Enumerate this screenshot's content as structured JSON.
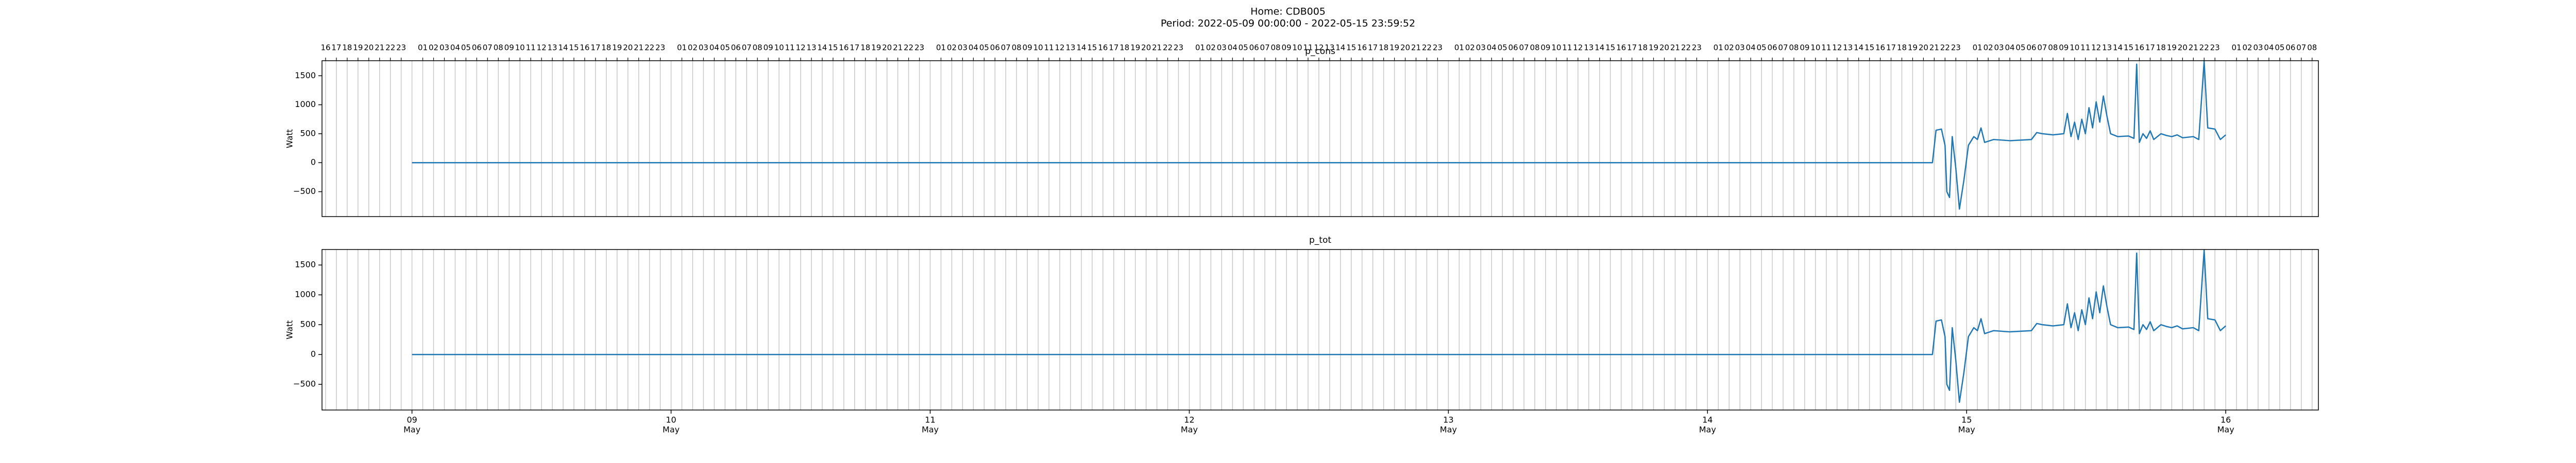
{
  "title": "Home: CDB005",
  "subtitle": "Period: 2022-05-09 00:00:00 - 2022-05-15 23:59:52",
  "chart_data": [
    {
      "type": "line",
      "title": "p_cons",
      "ylabel": "Watt",
      "color": "#1f77b4",
      "grid": true,
      "xlim": [
        "2022-05-08 15:40",
        "2022-05-16 08:35"
      ],
      "ylim": [
        -930,
        1760
      ],
      "yticks": [
        {
          "value": -500,
          "label": "−500"
        },
        0,
        500,
        1000,
        1500
      ],
      "x2ticks": [
        {
          "date": "2022-05-08",
          "hours": [
            "16",
            "17",
            "18",
            "19",
            "20",
            "21",
            "22",
            "23"
          ]
        },
        {
          "date": "2022-05-09",
          "hours": [
            "01",
            "02",
            "03",
            "04",
            "05",
            "06",
            "07",
            "08",
            "09",
            "10",
            "11",
            "12",
            "13",
            "14",
            "15",
            "16",
            "17",
            "18",
            "19",
            "20",
            "21",
            "22",
            "23"
          ]
        },
        {
          "date": "2022-05-10",
          "hours": [
            "01",
            "02",
            "03",
            "04",
            "05",
            "06",
            "07",
            "08",
            "09",
            "10",
            "11",
            "12",
            "13",
            "14",
            "15",
            "16",
            "17",
            "18",
            "19",
            "20",
            "21",
            "22",
            "23"
          ]
        },
        {
          "date": "2022-05-11",
          "hours": [
            "01",
            "02",
            "03",
            "04",
            "05",
            "06",
            "07",
            "08",
            "09",
            "10",
            "11",
            "12",
            "13",
            "14",
            "15",
            "16",
            "17",
            "18",
            "19",
            "20",
            "21",
            "22",
            "23"
          ]
        },
        {
          "date": "2022-05-12",
          "hours": [
            "01",
            "02",
            "03",
            "04",
            "05",
            "06",
            "07",
            "08",
            "09",
            "10",
            "11",
            "12",
            "13",
            "14",
            "15",
            "16",
            "17",
            "18",
            "19",
            "20",
            "21",
            "22",
            "23"
          ]
        },
        {
          "date": "2022-05-13",
          "hours": [
            "01",
            "02",
            "03",
            "04",
            "05",
            "06",
            "07",
            "08",
            "09",
            "10",
            "11",
            "12",
            "13",
            "14",
            "15",
            "16",
            "17",
            "18",
            "19",
            "20",
            "21",
            "22",
            "23"
          ]
        },
        {
          "date": "2022-05-14",
          "hours": [
            "01",
            "02",
            "03",
            "04",
            "05",
            "06",
            "07",
            "08",
            "09",
            "10",
            "11",
            "12",
            "13",
            "14",
            "15",
            "16",
            "17",
            "18",
            "19",
            "20",
            "21",
            "22",
            "23"
          ]
        },
        {
          "date": "2022-05-15",
          "hours": [
            "01",
            "02",
            "03",
            "04",
            "05",
            "06",
            "07",
            "08",
            "09",
            "10",
            "11",
            "12",
            "13",
            "14",
            "15",
            "16",
            "17",
            "18",
            "19",
            "20",
            "21",
            "22",
            "23"
          ]
        },
        {
          "date": "2022-05-16",
          "hours": [
            "01",
            "02",
            "03",
            "04",
            "05",
            "06",
            "07",
            "08"
          ]
        }
      ],
      "x": [
        "2022-05-09 00:00",
        "2022-05-14 20:50",
        "2022-05-14 21:10",
        "2022-05-14 21:40",
        "2022-05-14 22:00",
        "2022-05-14 22:10",
        "2022-05-14 22:25",
        "2022-05-14 22:40",
        "2022-05-14 23:00",
        "2022-05-14 23:20",
        "2022-05-14 23:45",
        "2022-05-15 00:10",
        "2022-05-15 00:40",
        "2022-05-15 01:00",
        "2022-05-15 01:20",
        "2022-05-15 01:40",
        "2022-05-15 02:30",
        "2022-05-15 04:00",
        "2022-05-15 05:00",
        "2022-05-15 06:00",
        "2022-05-15 06:30",
        "2022-05-15 07:00",
        "2022-05-15 08:00",
        "2022-05-15 09:00",
        "2022-05-15 09:20",
        "2022-05-15 09:40",
        "2022-05-15 10:00",
        "2022-05-15 10:20",
        "2022-05-15 10:40",
        "2022-05-15 11:00",
        "2022-05-15 11:20",
        "2022-05-15 11:40",
        "2022-05-15 12:00",
        "2022-05-15 12:20",
        "2022-05-15 12:40",
        "2022-05-15 13:00",
        "2022-05-15 13:20",
        "2022-05-15 14:00",
        "2022-05-15 15:00",
        "2022-05-15 15:30",
        "2022-05-15 15:45",
        "2022-05-15 16:00",
        "2022-05-15 16:20",
        "2022-05-15 16:40",
        "2022-05-15 17:00",
        "2022-05-15 17:20",
        "2022-05-15 18:00",
        "2022-05-15 18:30",
        "2022-05-15 19:00",
        "2022-05-15 19:30",
        "2022-05-15 20:00",
        "2022-05-15 21:00",
        "2022-05-15 21:30",
        "2022-05-15 22:00",
        "2022-05-15 22:20",
        "2022-05-15 23:00",
        "2022-05-15 23:30",
        "2022-05-16 00:00"
      ],
      "values": [
        0,
        0,
        560,
        580,
        300,
        -500,
        -600,
        450,
        -100,
        -800,
        -300,
        300,
        450,
        400,
        600,
        350,
        400,
        380,
        390,
        400,
        520,
        500,
        480,
        500,
        850,
        450,
        700,
        400,
        750,
        500,
        950,
        600,
        1050,
        700,
        1150,
        800,
        500,
        450,
        460,
        420,
        1700,
        350,
        500,
        420,
        550,
        400,
        500,
        470,
        450,
        480,
        430,
        450,
        400,
        1750,
        600,
        580,
        400,
        480
      ]
    },
    {
      "type": "line",
      "title": "p_tot",
      "ylabel": "Watt",
      "color": "#1f77b4",
      "grid": true,
      "xlim": [
        "2022-05-08 15:40",
        "2022-05-16 08:35"
      ],
      "ylim": [
        -930,
        1760
      ],
      "yticks": [
        {
          "value": -500,
          "label": "−500"
        },
        0,
        500,
        1000,
        1500
      ],
      "xticks": [
        {
          "value": "2022-05-09",
          "label": [
            "09",
            "May"
          ]
        },
        {
          "value": "2022-05-10",
          "label": [
            "10",
            "May"
          ]
        },
        {
          "value": "2022-05-11",
          "label": [
            "11",
            "May"
          ]
        },
        {
          "value": "2022-05-12",
          "label": [
            "12",
            "May"
          ]
        },
        {
          "value": "2022-05-13",
          "label": [
            "13",
            "May"
          ]
        },
        {
          "value": "2022-05-14",
          "label": [
            "14",
            "May"
          ]
        },
        {
          "value": "2022-05-15",
          "label": [
            "15",
            "May"
          ]
        },
        {
          "value": "2022-05-16",
          "label": [
            "16",
            "May"
          ]
        }
      ],
      "x": [
        "2022-05-09 00:00",
        "2022-05-14 20:50",
        "2022-05-14 21:10",
        "2022-05-14 21:40",
        "2022-05-14 22:00",
        "2022-05-14 22:10",
        "2022-05-14 22:25",
        "2022-05-14 22:40",
        "2022-05-14 23:00",
        "2022-05-14 23:20",
        "2022-05-14 23:45",
        "2022-05-15 00:10",
        "2022-05-15 00:40",
        "2022-05-15 01:00",
        "2022-05-15 01:20",
        "2022-05-15 01:40",
        "2022-05-15 02:30",
        "2022-05-15 04:00",
        "2022-05-15 05:00",
        "2022-05-15 06:00",
        "2022-05-15 06:30",
        "2022-05-15 07:00",
        "2022-05-15 08:00",
        "2022-05-15 09:00",
        "2022-05-15 09:20",
        "2022-05-15 09:40",
        "2022-05-15 10:00",
        "2022-05-15 10:20",
        "2022-05-15 10:40",
        "2022-05-15 11:00",
        "2022-05-15 11:20",
        "2022-05-15 11:40",
        "2022-05-15 12:00",
        "2022-05-15 12:20",
        "2022-05-15 12:40",
        "2022-05-15 13:00",
        "2022-05-15 13:20",
        "2022-05-15 14:00",
        "2022-05-15 15:00",
        "2022-05-15 15:30",
        "2022-05-15 15:45",
        "2022-05-15 16:00",
        "2022-05-15 16:20",
        "2022-05-15 16:40",
        "2022-05-15 17:00",
        "2022-05-15 17:20",
        "2022-05-15 18:00",
        "2022-05-15 18:30",
        "2022-05-15 19:00",
        "2022-05-15 19:30",
        "2022-05-15 20:00",
        "2022-05-15 21:00",
        "2022-05-15 21:30",
        "2022-05-15 22:00",
        "2022-05-15 22:20",
        "2022-05-15 23:00",
        "2022-05-15 23:30",
        "2022-05-16 00:00"
      ],
      "values": [
        0,
        0,
        560,
        580,
        300,
        -500,
        -600,
        450,
        -100,
        -800,
        -300,
        300,
        450,
        400,
        600,
        350,
        400,
        380,
        390,
        400,
        520,
        500,
        480,
        500,
        850,
        450,
        700,
        400,
        750,
        500,
        950,
        600,
        1050,
        700,
        1150,
        800,
        500,
        450,
        460,
        420,
        1700,
        350,
        500,
        420,
        550,
        400,
        500,
        470,
        450,
        480,
        430,
        450,
        400,
        1750,
        600,
        580,
        400,
        480
      ]
    }
  ]
}
